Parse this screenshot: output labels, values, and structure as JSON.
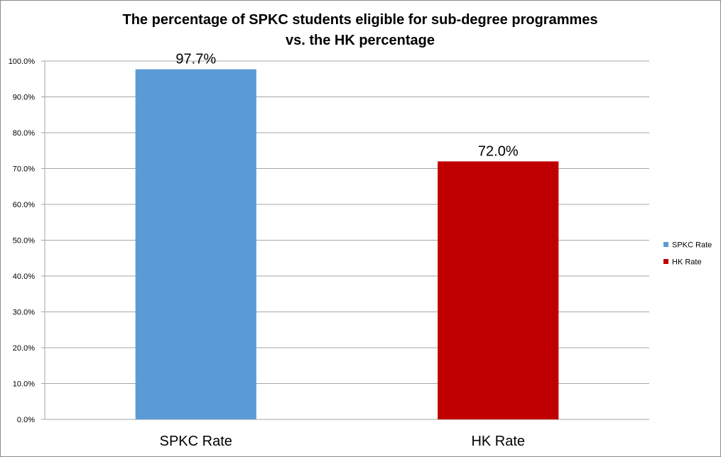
{
  "chart_data": {
    "type": "bar",
    "title_lines": [
      "The percentage of SPKC students eligible for sub-degree programmes",
      "vs. the HK percentage"
    ],
    "categories": [
      "SPKC Rate",
      "HK Rate"
    ],
    "values": [
      97.7,
      72.0
    ],
    "data_labels": [
      "97.7%",
      "72.0%"
    ],
    "colors": [
      "#5b9bd5",
      "#c00000"
    ],
    "ylim": [
      0,
      100
    ],
    "yticks": [
      0,
      10,
      20,
      30,
      40,
      50,
      60,
      70,
      80,
      90,
      100
    ],
    "ytick_labels": [
      "0.0%",
      "10.0%",
      "20.0%",
      "30.0%",
      "40.0%",
      "50.0%",
      "60.0%",
      "70.0%",
      "80.0%",
      "90.0%",
      "100.0%"
    ],
    "grid": true,
    "gridline_color": "#a6a6a6",
    "legend": {
      "position": "right",
      "entries": [
        "SPKC Rate",
        "HK Rate"
      ]
    },
    "xlabel": "",
    "ylabel": ""
  }
}
